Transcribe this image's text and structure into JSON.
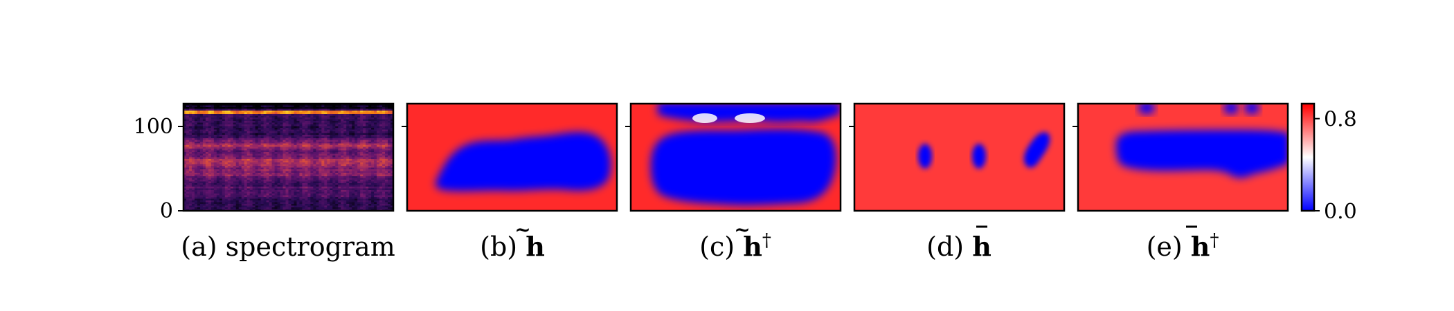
{
  "chart_data": [
    {
      "type": "heatmap",
      "id": "a",
      "colormap": "magma",
      "caption": {
        "prefix": "(a)",
        "label": "spectrogram"
      },
      "ylim": [
        0,
        128
      ],
      "yticks": [
        0,
        100
      ],
      "ytick_labels": [
        "0",
        "100"
      ]
    },
    {
      "type": "heatmap",
      "id": "b",
      "colormap": "bwr_r",
      "caption": {
        "prefix": "(b)",
        "symbol": "h",
        "accent": "tilde",
        "superscript": ""
      }
    },
    {
      "type": "heatmap",
      "id": "c",
      "colormap": "bwr_r",
      "caption": {
        "prefix": "(c)",
        "symbol": "h",
        "accent": "tilde",
        "superscript": "†"
      }
    },
    {
      "type": "heatmap",
      "id": "d",
      "colormap": "bwr_r",
      "caption": {
        "prefix": "(d)",
        "symbol": "h",
        "accent": "bar",
        "superscript": ""
      }
    },
    {
      "type": "heatmap",
      "id": "e",
      "colormap": "bwr_r",
      "caption": {
        "prefix": "(e)",
        "symbol": "h",
        "accent": "bar",
        "superscript": "†"
      }
    }
  ],
  "colorbar": {
    "colors": {
      "high": "#ff0000",
      "mid": "#ffffff",
      "low": "#0000ff"
    },
    "ticks": [
      0.0,
      0.8
    ],
    "tick_labels": [
      "0.0",
      "0.8"
    ]
  }
}
